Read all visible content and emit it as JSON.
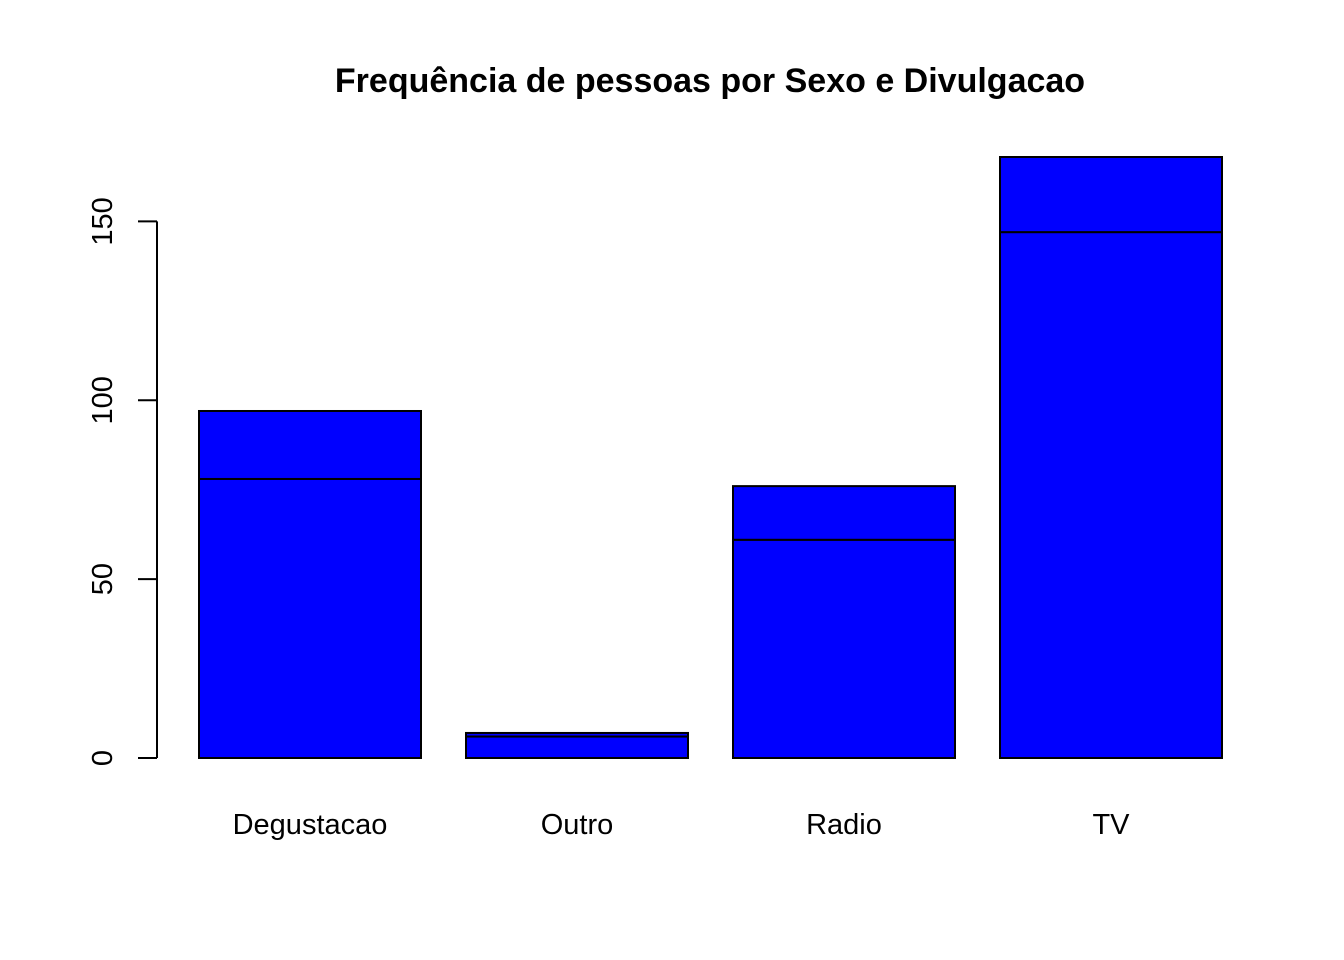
{
  "chart_data": {
    "type": "bar",
    "stacked": true,
    "title": "Frequência de pessoas por Sexo e Divulgacao",
    "xlabel": "",
    "ylabel": "",
    "categories": [
      "Degustacao",
      "Outro",
      "Radio",
      "TV"
    ],
    "series": [
      {
        "values": [
          78,
          6,
          61,
          147
        ]
      },
      {
        "values": [
          19,
          1,
          15,
          21
        ]
      }
    ],
    "totals": [
      97,
      7,
      76,
      168
    ],
    "ylim": [
      0,
      168
    ],
    "yticks": [
      "0",
      "50",
      "100",
      "150"
    ],
    "grid": false,
    "legend": "none",
    "colors": {
      "bar_fill": "#0000ff",
      "bar_stroke": "#000000",
      "axis": "#000000"
    }
  }
}
